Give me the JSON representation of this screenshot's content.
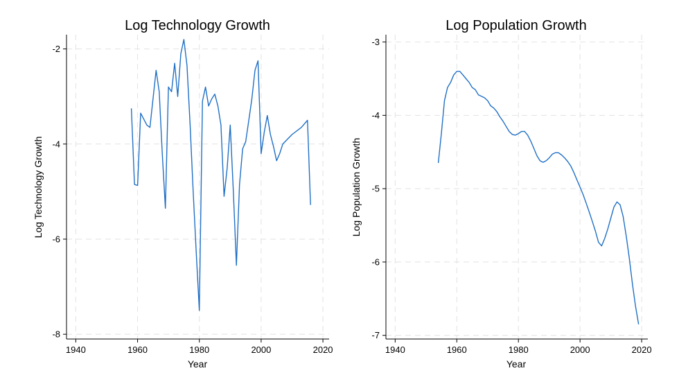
{
  "chart_data": [
    {
      "type": "line",
      "title": "Log Technology Growth",
      "xlabel": "Year",
      "ylabel": "Log Technology Growth",
      "xlim": [
        1937,
        2022
      ],
      "ylim": [
        -8.1,
        -1.7
      ],
      "xticks": [
        1940,
        1960,
        1980,
        2000,
        2020
      ],
      "yticks": [
        -2,
        -4,
        -6,
        -8
      ],
      "grid": true,
      "color": "#1f6fc5",
      "series": [
        {
          "x": [
            1958,
            1959,
            1960,
            1961,
            1963,
            1964,
            1966,
            1967,
            1968,
            1969,
            1970,
            1971,
            1972,
            1973,
            1974,
            1975,
            1976,
            1977,
            1978,
            1979,
            1980,
            1981,
            1982,
            1983,
            1984,
            1985,
            1986,
            1987,
            1988,
            1989,
            1990,
            1991,
            1992,
            1993,
            1994,
            1995,
            1996,
            1997,
            1998,
            1999,
            2000,
            2001,
            2002,
            2003,
            2004,
            2005,
            2006,
            2007,
            2010,
            2013,
            2015,
            2016
          ],
          "y": [
            -3.25,
            -4.85,
            -4.87,
            -3.35,
            -3.6,
            -3.65,
            -2.45,
            -2.9,
            -4.2,
            -5.35,
            -2.8,
            -2.9,
            -2.3,
            -3.0,
            -2.1,
            -1.8,
            -2.35,
            -3.6,
            -5.0,
            -6.3,
            -7.5,
            -3.1,
            -2.8,
            -3.2,
            -3.05,
            -2.95,
            -3.2,
            -3.6,
            -5.1,
            -4.5,
            -3.6,
            -5.0,
            -6.55,
            -4.85,
            -4.1,
            -3.95,
            -3.5,
            -3.05,
            -2.45,
            -2.25,
            -4.2,
            -3.75,
            -3.4,
            -3.8,
            -4.05,
            -4.35,
            -4.2,
            -4.0,
            -3.8,
            -3.65,
            -3.5,
            -5.28
          ]
        }
      ]
    },
    {
      "type": "line",
      "title": "Log Population Growth",
      "xlabel": "Year",
      "ylabel": "Log Population Growth",
      "xlim": [
        1937,
        2022
      ],
      "ylim": [
        -7.05,
        -2.9
      ],
      "xticks": [
        1940,
        1960,
        1980,
        2000,
        2020
      ],
      "yticks": [
        -3,
        -4,
        -5,
        -6,
        -7
      ],
      "grid": true,
      "color": "#1f6fc5",
      "series": [
        {
          "x": [
            1954,
            1955,
            1956,
            1957,
            1958,
            1959,
            1960,
            1961,
            1962,
            1963,
            1964,
            1965,
            1966,
            1967,
            1968,
            1969,
            1970,
            1971,
            1972,
            1973,
            1974,
            1975,
            1976,
            1977,
            1978,
            1979,
            1980,
            1981,
            1982,
            1983,
            1984,
            1985,
            1986,
            1987,
            1988,
            1989,
            1990,
            1991,
            1992,
            1993,
            1994,
            1995,
            1996,
            1997,
            1998,
            1999,
            2000,
            2001,
            2002,
            2003,
            2004,
            2005,
            2006,
            2007,
            2008,
            2009,
            2010,
            2011,
            2012,
            2013,
            2014,
            2015,
            2016,
            2017,
            2018,
            2019
          ],
          "y": [
            -4.65,
            -4.25,
            -3.8,
            -3.62,
            -3.55,
            -3.45,
            -3.4,
            -3.4,
            -3.45,
            -3.5,
            -3.55,
            -3.62,
            -3.65,
            -3.72,
            -3.74,
            -3.76,
            -3.8,
            -3.87,
            -3.9,
            -3.95,
            -4.02,
            -4.08,
            -4.15,
            -4.22,
            -4.26,
            -4.27,
            -4.25,
            -4.22,
            -4.22,
            -4.27,
            -4.35,
            -4.45,
            -4.55,
            -4.62,
            -4.64,
            -4.62,
            -4.58,
            -4.53,
            -4.51,
            -4.51,
            -4.54,
            -4.58,
            -4.63,
            -4.69,
            -4.78,
            -4.88,
            -4.98,
            -5.08,
            -5.2,
            -5.32,
            -5.45,
            -5.58,
            -5.73,
            -5.78,
            -5.68,
            -5.55,
            -5.4,
            -5.25,
            -5.18,
            -5.22,
            -5.38,
            -5.65,
            -5.95,
            -6.3,
            -6.6,
            -6.85
          ]
        }
      ]
    }
  ]
}
